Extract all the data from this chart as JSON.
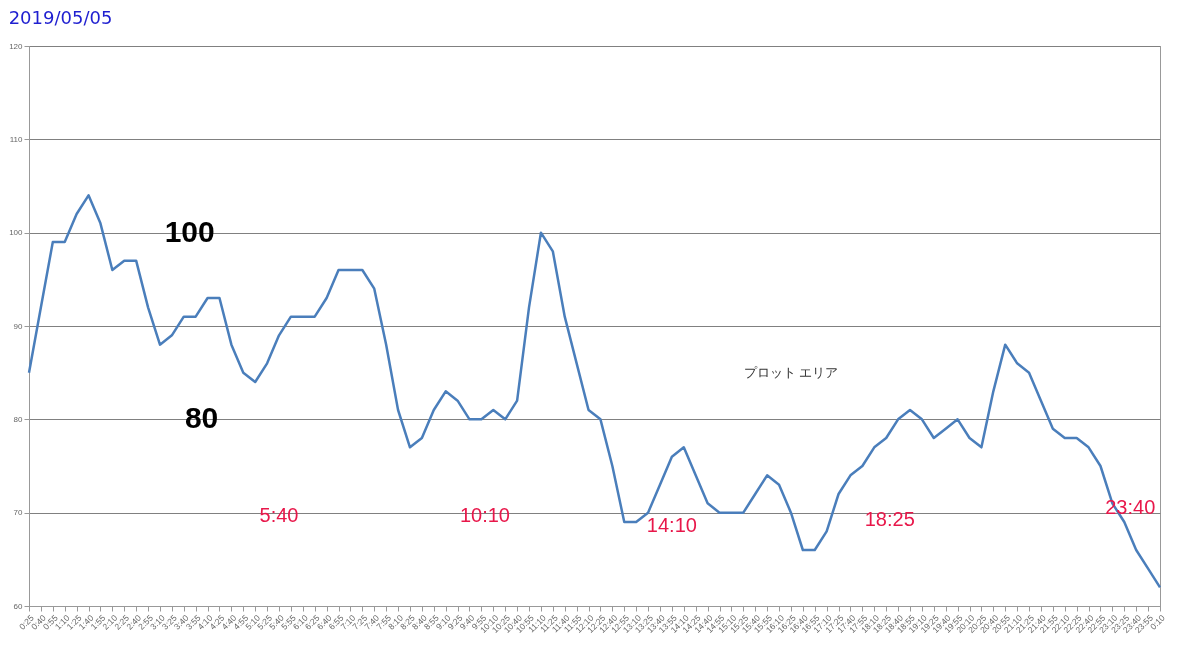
{
  "chart_data": {
    "type": "line",
    "title": "2019/05/05",
    "categories": [
      "0:25",
      "0:40",
      "0:55",
      "1:10",
      "1:25",
      "1:40",
      "1:55",
      "2:10",
      "2:25",
      "2:40",
      "2:55",
      "3:10",
      "3:25",
      "3:40",
      "3:55",
      "4:10",
      "4:25",
      "4:40",
      "4:55",
      "5:10",
      "5:25",
      "5:40",
      "5:55",
      "6:10",
      "6:25",
      "6:40",
      "6:55",
      "7:10",
      "7:25",
      "7:40",
      "7:55",
      "8:10",
      "8:25",
      "8:40",
      "8:55",
      "9:10",
      "9:25",
      "9:40",
      "9:55",
      "10:10",
      "10:25",
      "10:40",
      "10:55",
      "11:10",
      "11:25",
      "11:40",
      "11:55",
      "12:10",
      "12:25",
      "12:40",
      "12:55",
      "13:10",
      "13:25",
      "13:40",
      "13:55",
      "14:10",
      "14:25",
      "14:40",
      "14:55",
      "15:10",
      "15:25",
      "15:40",
      "15:55",
      "16:10",
      "16:25",
      "16:40",
      "16:55",
      "17:10",
      "17:25",
      "17:40",
      "17:55",
      "18:10",
      "18:25",
      "18:40",
      "18:55",
      "19:10",
      "19:25",
      "19:40",
      "19:55",
      "20:10",
      "20:25",
      "20:40",
      "20:55",
      "21:10",
      "21:25",
      "21:40",
      "21:55",
      "22:10",
      "22:25",
      "22:40",
      "22:55",
      "23:10",
      "23:25",
      "23:40",
      "23:55",
      "0:10"
    ],
    "series": [
      {
        "color": "#4a7ebb",
        "values": [
          85,
          92,
          99,
          99,
          102,
          104,
          101,
          96,
          97,
          97,
          92,
          88,
          89,
          91,
          91,
          93,
          93,
          88,
          85,
          84,
          86,
          89,
          91,
          91,
          91,
          93,
          96,
          96,
          96,
          94,
          88,
          81,
          77,
          78,
          81,
          83,
          82,
          80,
          80,
          81,
          80,
          82,
          92,
          100,
          98,
          91,
          86,
          81,
          80,
          75,
          69,
          69,
          70,
          73,
          76,
          77,
          74,
          71,
          70,
          70,
          70,
          72,
          74,
          73,
          70,
          66,
          66,
          68,
          72,
          74,
          75,
          77,
          78,
          80,
          81,
          80,
          78,
          79,
          80,
          78,
          77,
          83,
          88,
          86,
          85,
          82,
          79,
          78,
          78,
          77,
          75,
          71,
          69,
          66,
          64,
          62
        ]
      }
    ],
    "ylim": [
      60,
      120
    ],
    "yticks": [
      60,
      70,
      80,
      90,
      100,
      110,
      120
    ],
    "grid": "y",
    "marker": "none",
    "line_style": "solid",
    "annotations": [
      "100",
      "80",
      "5:40",
      "10:10",
      "14:10",
      "18:25",
      "23:40",
      "プロット エリア"
    ]
  }
}
